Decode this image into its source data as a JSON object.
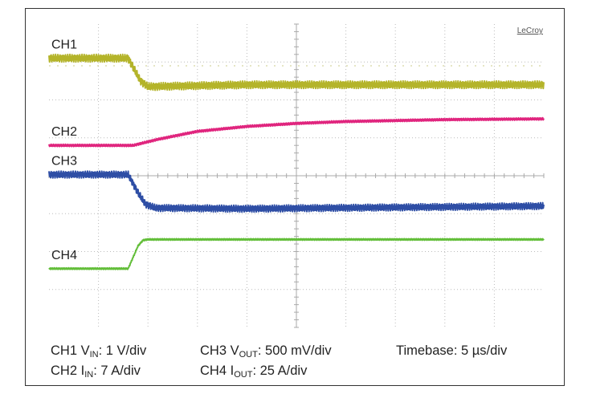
{
  "chart_data": {
    "type": "line",
    "brand": "LeCroy",
    "grid": true,
    "divisions": {
      "x": 10,
      "y": 8
    },
    "x_unit": "div",
    "xlim": [
      0,
      10
    ],
    "y_unit": "div",
    "ylim": [
      -4,
      4
    ],
    "series": [
      {
        "name": "CH1",
        "color": "#b4b42a",
        "x": [
          0,
          1.6,
          1.85,
          2.0,
          4.0,
          10.0
        ],
        "y": [
          3.1,
          3.1,
          2.5,
          2.35,
          2.4,
          2.4
        ],
        "ripple_div": 0.1
      },
      {
        "name": "CH2",
        "color": "#e0257e",
        "x": [
          0,
          1.7,
          2.2,
          3.0,
          4.0,
          5.0,
          6.0,
          8.0,
          10.0
        ],
        "y": [
          0.8,
          0.8,
          0.96,
          1.17,
          1.3,
          1.38,
          1.43,
          1.48,
          1.5
        ],
        "ripple_div": 0.03
      },
      {
        "name": "CH3",
        "color": "#2e4ea5",
        "x": [
          0,
          1.6,
          1.8,
          1.95,
          2.15,
          4.0,
          10.0
        ],
        "y": [
          0.03,
          0.03,
          -0.45,
          -0.75,
          -0.85,
          -0.87,
          -0.8
        ],
        "ripple_div": 0.09
      },
      {
        "name": "CH4",
        "color": "#63be3a",
        "x": [
          0,
          1.6,
          1.8,
          1.9,
          2.0,
          10.0
        ],
        "y": [
          -2.45,
          -2.45,
          -1.85,
          -1.7,
          -1.68,
          -1.68
        ],
        "ripple_div": 0.02
      }
    ],
    "legend_rows": [
      [
        {
          "ch": "CH1",
          "sym": "V",
          "sub": "IN",
          "val": ": 1 V/div"
        },
        {
          "ch": "CH3",
          "sym": "V",
          "sub": "OUT",
          "val": ": 500 mV/div"
        },
        {
          "text": "Timebase: 5 µs/div"
        }
      ],
      [
        {
          "ch": "CH2",
          "sym": "I",
          "sub": "IN",
          "val": ": 7 A/div"
        },
        {
          "ch": "CH4",
          "sym": "I",
          "sub": "OUT",
          "val": ": 25 A/div"
        }
      ]
    ]
  }
}
